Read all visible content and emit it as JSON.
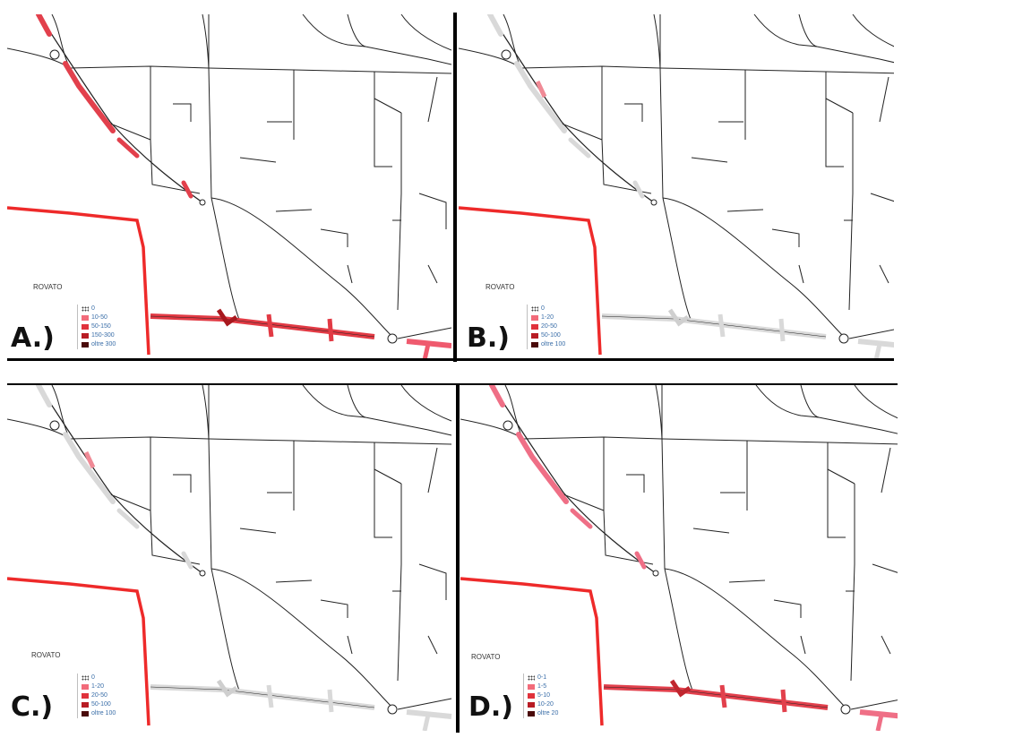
{
  "figure": {
    "town_label": "ROVATO",
    "colors": {
      "road": "#222222",
      "boundary": "#ee2a2a",
      "highway_base": "#d9d9d9"
    }
  },
  "panels": [
    {
      "id": "A",
      "label": "A.)",
      "legend": [
        {
          "text": "0",
          "color": "#ffffff",
          "pattern": "dots"
        },
        {
          "text": "10-50",
          "color": "#f26b7a"
        },
        {
          "text": "50-150",
          "color": "#e0323c"
        },
        {
          "text": "150-300",
          "color": "#b81c24"
        },
        {
          "text": "oltre 300",
          "color": "#4a0a0a"
        }
      ],
      "overlay_colors": {
        "nw": "#e2404c",
        "south": "#e23a44",
        "south_dark": "#a8181e",
        "se": "#ef5a6e"
      }
    },
    {
      "id": "B",
      "label": "B.)",
      "legend": [
        {
          "text": "0",
          "color": "#ffffff",
          "pattern": "dots"
        },
        {
          "text": "1-20",
          "color": "#f26b7a"
        },
        {
          "text": "20-50",
          "color": "#e0323c"
        },
        {
          "text": "50-100",
          "color": "#b81c24"
        },
        {
          "text": "oltre 100",
          "color": "#4a0a0a"
        }
      ],
      "overlay_colors": {
        "nw": "#d9d9d9",
        "south": "#d9d9d9",
        "south_dark": "#cfcfcf",
        "se": "#d9d9d9",
        "accent": "#f08a96"
      }
    },
    {
      "id": "C",
      "label": "C.)",
      "legend": [
        {
          "text": "0",
          "color": "#ffffff",
          "pattern": "dots"
        },
        {
          "text": "1-20",
          "color": "#f26b7a"
        },
        {
          "text": "20-50",
          "color": "#e0323c"
        },
        {
          "text": "50-100",
          "color": "#b81c24"
        },
        {
          "text": "oltre 100",
          "color": "#4a0a0a"
        }
      ],
      "overlay_colors": {
        "nw": "#d9d9d9",
        "south": "#d9d9d9",
        "south_dark": "#cfcfcf",
        "se": "#d9d9d9",
        "accent": "#f08a96"
      }
    },
    {
      "id": "D",
      "label": "D.)",
      "legend": [
        {
          "text": "0-1",
          "color": "#ffffff",
          "pattern": "dots"
        },
        {
          "text": "1-5",
          "color": "#f26b7a"
        },
        {
          "text": "5-10",
          "color": "#e0323c"
        },
        {
          "text": "10-20",
          "color": "#b81c24"
        },
        {
          "text": "oltre 20",
          "color": "#4a0a0a"
        }
      ],
      "overlay_colors": {
        "nw": "#ef6f86",
        "south": "#e2404c",
        "south_dark": "#c0262e",
        "se": "#ef6f86"
      }
    }
  ]
}
